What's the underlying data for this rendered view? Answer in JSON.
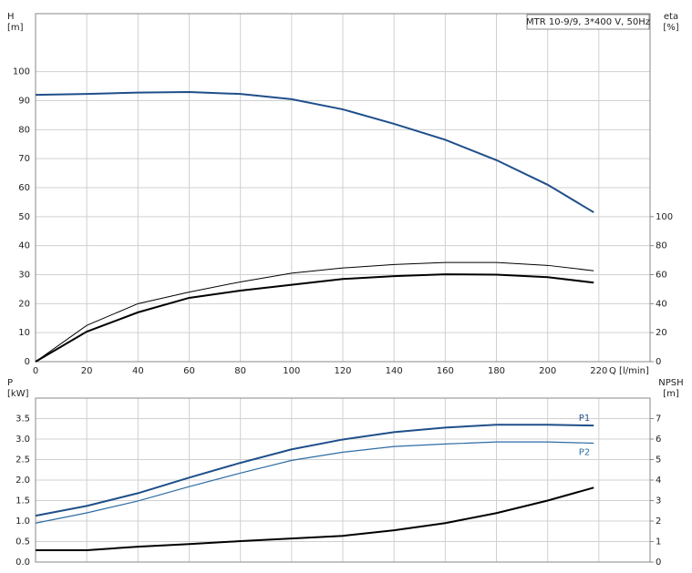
{
  "chart_data": [
    {
      "type": "line",
      "title": "MTR 10-9/9, 3*400 V, 50Hz",
      "y_label": [
        "H",
        "[m]"
      ],
      "y2_label": [
        "eta",
        "[%]"
      ],
      "x_label": "Q [l/min]",
      "x": [
        0,
        20,
        40,
        60,
        80,
        100,
        120,
        140,
        160,
        180,
        200,
        218
      ],
      "xlim": [
        0,
        240
      ],
      "xticks": [
        0,
        20,
        40,
        60,
        80,
        100,
        120,
        140,
        160,
        180,
        200,
        220
      ],
      "ylim": [
        0,
        120
      ],
      "yticks": [
        0,
        10,
        20,
        30,
        40,
        50,
        60,
        70,
        80,
        90,
        100
      ],
      "y2lim": [
        0,
        240
      ],
      "y2ticks": [
        0,
        20,
        40,
        60,
        80,
        100
      ],
      "grid": true,
      "series": [
        {
          "color": "#1f4f8a",
          "values": [
            92,
            92.3,
            92.8,
            93,
            92.3,
            90.5,
            87,
            82,
            76.5,
            69.5,
            61,
            51.5
          ]
        },
        {
          "color": "#000000",
          "axis": "y2",
          "values": [
            0,
            25,
            40,
            48,
            55,
            61,
            64.6,
            67,
            68.4,
            68.4,
            66.4,
            62.7
          ]
        },
        {
          "color": "#000000",
          "axis": "y2",
          "values": [
            0,
            20.7,
            34,
            44,
            49,
            53,
            57,
            59,
            60.2,
            60,
            58.3,
            54.5
          ]
        }
      ]
    },
    {
      "type": "line",
      "y_label": [
        "P",
        "[kW]"
      ],
      "y2_label": [
        "NPSH",
        "[m]"
      ],
      "x": [
        0,
        20,
        40,
        60,
        80,
        100,
        120,
        140,
        160,
        180,
        200,
        218
      ],
      "xlim": [
        0,
        240
      ],
      "xticks": [
        0,
        20,
        40,
        60,
        80,
        100,
        120,
        140,
        160,
        180,
        200,
        220
      ],
      "ylim": [
        0,
        4
      ],
      "yticks": [
        {
          "value": 0,
          "label": "0.0"
        },
        0.5,
        {
          "value": 1,
          "label": "1.0"
        },
        1.5,
        {
          "value": 2,
          "label": "2.0"
        },
        2.5,
        {
          "value": 3,
          "label": "3.0"
        },
        3.5
      ],
      "y2lim": [
        0,
        8
      ],
      "y2ticks": [
        0,
        1,
        2,
        3,
        4,
        5,
        6,
        7
      ],
      "grid": true,
      "series": [
        {
          "name": "P1",
          "color": "#1f4f8a",
          "values": [
            1.13,
            1.37,
            1.68,
            2.06,
            2.42,
            2.75,
            2.99,
            3.17,
            3.28,
            3.35,
            3.35,
            3.33
          ]
        },
        {
          "name": "P2",
          "color": "#2d6ca3",
          "values": [
            0.95,
            1.2,
            1.49,
            1.84,
            2.17,
            2.48,
            2.68,
            2.82,
            2.88,
            2.93,
            2.93,
            2.9
          ]
        },
        {
          "color": "#000000",
          "axis": "y2",
          "values": [
            0.58,
            0.58,
            0.75,
            0.88,
            1.02,
            1.15,
            1.28,
            1.55,
            1.9,
            2.39,
            3.0,
            3.63
          ]
        }
      ]
    }
  ]
}
